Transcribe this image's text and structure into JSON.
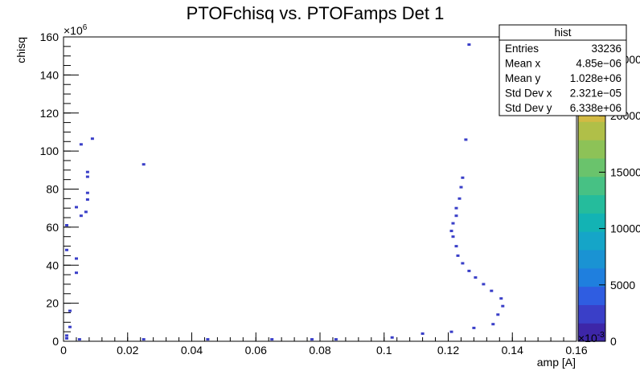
{
  "chart_data": {
    "type": "heatmap",
    "title": "PTOFchisq vs. PTOFamps Det 1",
    "xlabel": "amp [A]",
    "ylabel": "chisq",
    "xlim": [
      0,
      0.16
    ],
    "ylim": [
      0,
      160
    ],
    "x_ticks": [
      "0",
      "0.02",
      "0.04",
      "0.06",
      "0.08",
      "0.1",
      "0.12",
      "0.14",
      "0.16"
    ],
    "x_tick_values": [
      0,
      0.02,
      0.04,
      0.06,
      0.08,
      0.1,
      0.12,
      0.14,
      0.16
    ],
    "y_ticks": [
      "0",
      "20",
      "40",
      "60",
      "80",
      "100",
      "120",
      "140",
      "160"
    ],
    "y_tick_values": [
      0,
      20,
      40,
      60,
      80,
      100,
      120,
      140,
      160
    ],
    "y_multiplier": "×10",
    "y_multiplier_exp": "6",
    "z_multiplier": "×10",
    "z_multiplier_exp": "-3",
    "stats": {
      "title": "hist",
      "rows": [
        {
          "label": "Entries",
          "value": "33236"
        },
        {
          "label": "Mean x",
          "value": "4.85e−06"
        },
        {
          "label": "Mean y",
          "value": "1.028e+06"
        },
        {
          "label": "Std Dev x",
          "value": "2.321e−05"
        },
        {
          "label": "Std Dev y",
          "value": "6.338e+06"
        }
      ]
    },
    "palette": {
      "range": [
        0,
        26000
      ],
      "ticks": [
        "0",
        "5000",
        "10000",
        "15000",
        "20000",
        "25000"
      ],
      "tick_values": [
        0,
        5000,
        10000,
        15000,
        20000,
        25000
      ],
      "colors": [
        "#3d26a8",
        "#3a3fc8",
        "#2f5de1",
        "#1f7fde",
        "#1a93d3",
        "#15a5c8",
        "#13b3b4",
        "#25bc9c",
        "#47c184",
        "#6ac36c",
        "#8dc257",
        "#b0bf48",
        "#d2ba44",
        "#f0c03a",
        "#f9dd25",
        "#f9fb0e"
      ]
    },
    "cells_note": "amp [A], chisq (x1e6) bin centers of filled cells",
    "cells": [
      [
        0.0775,
        1.0
      ],
      [
        0.005,
        1.0
      ],
      [
        0.025,
        1.0
      ],
      [
        0.045,
        1.0
      ],
      [
        0.065,
        1.0
      ],
      [
        0.085,
        1.0
      ],
      [
        0.1025,
        2.0
      ],
      [
        0.112,
        4.0
      ],
      [
        0.121,
        5.0
      ],
      [
        0.128,
        7.0
      ],
      [
        0.134,
        9.0
      ],
      [
        0.1355,
        14.0
      ],
      [
        0.137,
        18.5
      ],
      [
        0.1365,
        22.5
      ],
      [
        0.1335,
        26.5
      ],
      [
        0.131,
        30.0
      ],
      [
        0.1285,
        33.5
      ],
      [
        0.1265,
        37.0
      ],
      [
        0.1245,
        41.0
      ],
      [
        0.123,
        45.0
      ],
      [
        0.1225,
        50.0
      ],
      [
        0.1215,
        55.0
      ],
      [
        0.121,
        58.0
      ],
      [
        0.1215,
        62.0
      ],
      [
        0.1225,
        66.0
      ],
      [
        0.1225,
        70.0
      ],
      [
        0.1235,
        75.0
      ],
      [
        0.124,
        81.0
      ],
      [
        0.1245,
        86.0
      ],
      [
        0.1255,
        106.0
      ],
      [
        0.1265,
        156.0
      ],
      [
        0.009,
        106.5
      ],
      [
        0.0055,
        103.5
      ],
      [
        0.025,
        93.0
      ],
      [
        0.0075,
        89.0
      ],
      [
        0.0075,
        86.5
      ],
      [
        0.0075,
        78.0
      ],
      [
        0.0075,
        74.5
      ],
      [
        0.007,
        68.0
      ],
      [
        0.0055,
        66.0
      ],
      [
        0.004,
        70.5
      ],
      [
        0.001,
        61.0
      ],
      [
        0.001,
        48.0
      ],
      [
        0.004,
        43.5
      ],
      [
        0.004,
        36.0
      ],
      [
        0.002,
        16.0
      ],
      [
        0.002,
        7.5
      ],
      [
        0.001,
        1.5
      ],
      [
        0.001,
        3.0
      ]
    ]
  }
}
